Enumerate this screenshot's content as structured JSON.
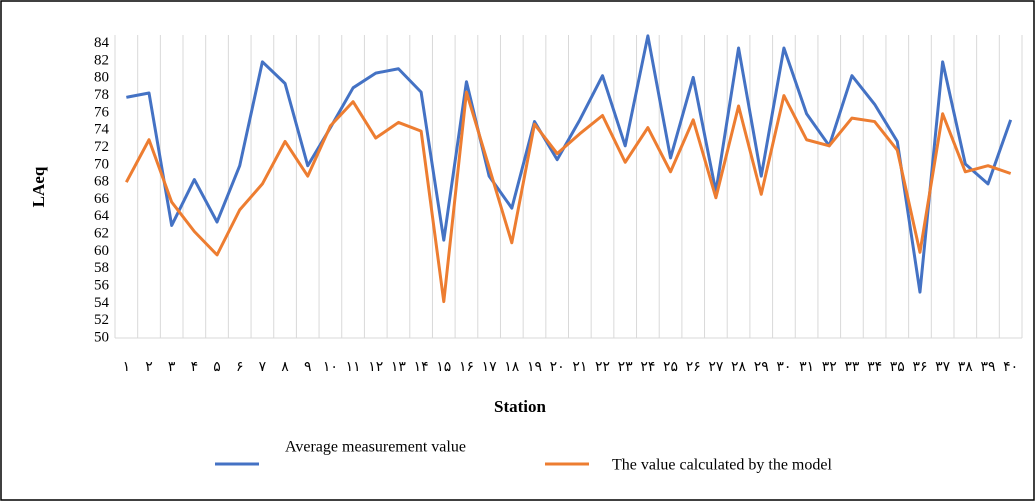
{
  "chart_data": {
    "type": "line",
    "x_label": "Station",
    "y_label": "LAeq",
    "categories": [
      "۱",
      "۲",
      "۳",
      "۴",
      "۵",
      "۶",
      "۷",
      "۸",
      "۹",
      "۱۰",
      "۱۱",
      "۱۲",
      "۱۳",
      "۱۴",
      "۱۵",
      "۱۶",
      "۱۷",
      "۱۸",
      "۱۹",
      "۲۰",
      "۲۱",
      "۲۲",
      "۲۳",
      "۲۴",
      "۲۵",
      "۲۶",
      "۲۷",
      "۲۸",
      "۲۹",
      "۳۰",
      "۳۱",
      "۳۲",
      "۳۳",
      "۳۴",
      "۳۵",
      "۳۶",
      "۳۷",
      "۳۸",
      "۳۹",
      "۴۰"
    ],
    "series": [
      {
        "name": "Average measurement value",
        "color": "#4472c4",
        "values": [
          77.8,
          78.3,
          63,
          68.3,
          63.4,
          69.9,
          81.9,
          79.4,
          69.9,
          74.3,
          78.9,
          80.6,
          81.1,
          78.4,
          61.3,
          79.6,
          68.7,
          65,
          75,
          70.6,
          75.2,
          80.3,
          72.2,
          84.9,
          70.8,
          80.1,
          66.9,
          83.5,
          68.7,
          83.5,
          75.9,
          72.2,
          80.3,
          77,
          72.7,
          55.3,
          81.9,
          70.1,
          67.8,
          75.2
        ]
      },
      {
        "name": "The value calculated by the model",
        "color": "#ed7d31",
        "values": [
          68,
          72.9,
          65.7,
          62.3,
          59.6,
          64.8,
          67.8,
          72.7,
          68.7,
          74.5,
          77.3,
          73.1,
          74.9,
          73.9,
          54.2,
          78.4,
          69.7,
          61,
          74.7,
          71.3,
          73.6,
          75.7,
          70.3,
          74.3,
          69.2,
          75.2,
          66.2,
          76.8,
          66.6,
          78,
          72.9,
          72.2,
          75.4,
          75,
          71.7,
          59.9,
          75.9,
          69.2,
          69.9,
          69
        ]
      }
    ],
    "ylim": [
      50,
      85
    ],
    "yticks": [
      50,
      52,
      54,
      56,
      58,
      60,
      62,
      64,
      66,
      68,
      70,
      72,
      74,
      76,
      78,
      80,
      82,
      84
    ],
    "grid": "vertical"
  }
}
